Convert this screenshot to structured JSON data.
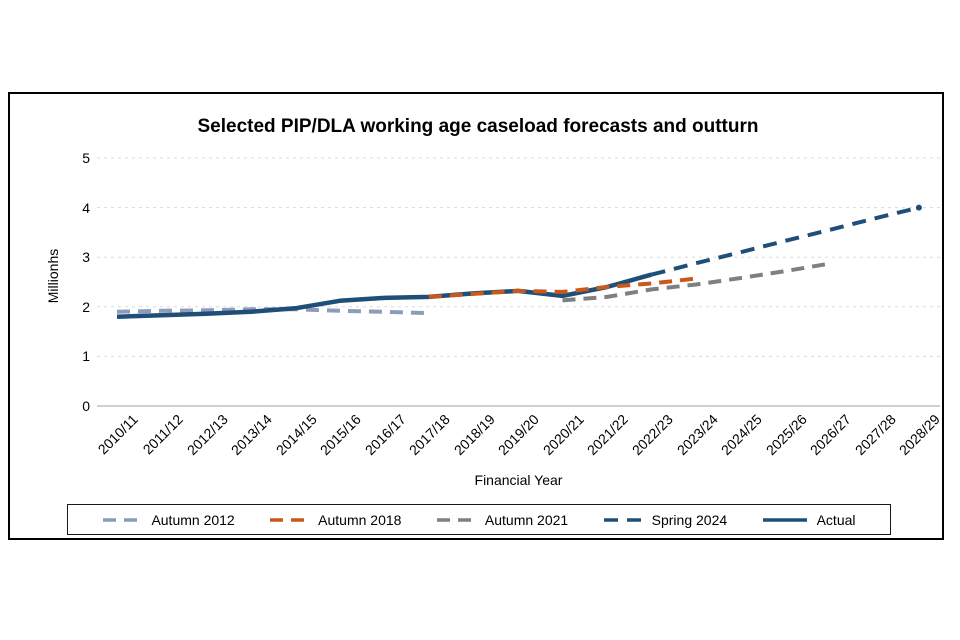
{
  "figure": {
    "background": "#ffffff",
    "frame_border_color": "#000000",
    "grid_color": "#d9d9d9",
    "axis_line_color": "#bfbfbf"
  },
  "chart_data": {
    "type": "line",
    "title": "Selected PIP/DLA working age caseload forecasts and outturn",
    "xlabel": "Financial Year",
    "ylabel": "Millionhs",
    "ylim": [
      0,
      5
    ],
    "yticks": [
      0,
      1,
      2,
      3,
      4,
      5
    ],
    "grid": "horizontal-dashed",
    "legend_position": "bottom-boxed",
    "categories": [
      "2010/11",
      "2011/12",
      "2012/13",
      "2013/14",
      "2014/15",
      "2015/16",
      "2016/17",
      "2017/18",
      "2018/19",
      "2019/20",
      "2020/21",
      "2021/22",
      "2022/23",
      "2023/24",
      "2024/25",
      "2025/26",
      "2026/27",
      "2027/28",
      "2028/29"
    ],
    "series": [
      {
        "name": "Autumn 2012",
        "color": "#8c9cba",
        "style": "dashed",
        "dash": "13 8",
        "start_index": 0,
        "values": [
          1.9,
          1.92,
          1.93,
          1.95,
          1.95,
          1.92,
          1.9,
          1.87
        ]
      },
      {
        "name": "Autumn 2018",
        "color": "#c9591b",
        "style": "dashed",
        "dash": "13 8",
        "start_index": 7,
        "values": [
          2.2,
          2.26,
          2.32,
          2.3,
          2.4,
          2.47,
          2.57
        ]
      },
      {
        "name": "Autumn 2021",
        "color": "#7f7f7f",
        "style": "dashed",
        "dash": "13 8",
        "start_index": 10,
        "values": [
          2.13,
          2.2,
          2.35,
          2.45,
          2.58,
          2.72,
          2.87
        ]
      },
      {
        "name": "Spring 2024",
        "color": "#1f4e79",
        "style": "dashed",
        "dash": "14 9",
        "start_index": 12,
        "values": [
          2.65,
          2.88,
          3.1,
          3.33,
          3.55,
          3.78,
          4.0
        ],
        "end_marker": true
      },
      {
        "name": "Actual",
        "color": "#1f4e79",
        "style": "solid",
        "start_index": 0,
        "values": [
          1.8,
          1.83,
          1.86,
          1.9,
          1.97,
          2.12,
          2.18,
          2.2,
          2.27,
          2.32,
          2.22,
          2.4,
          2.65
        ]
      }
    ]
  }
}
